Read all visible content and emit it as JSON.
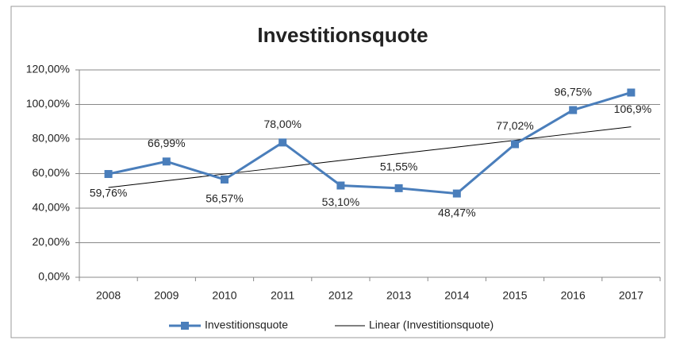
{
  "chart_data": {
    "type": "line",
    "title": "Investitionsquote",
    "categories": [
      "2008",
      "2009",
      "2010",
      "2011",
      "2012",
      "2013",
      "2014",
      "2015",
      "2016",
      "2017"
    ],
    "series": [
      {
        "name": "Investitionsquote",
        "color": "#4a7ebb",
        "marker": "square",
        "values": [
          59.76,
          66.99,
          56.57,
          78.0,
          53.1,
          51.55,
          48.47,
          77.02,
          96.75,
          106.9
        ],
        "value_labels": [
          "59,76%",
          "66,99%",
          "56,57%",
          "78,00%",
          "53,10%",
          "51,55%",
          "48,47%",
          "77,02%",
          "96,75%",
          "106,9%"
        ]
      },
      {
        "name": "Linear (Investitionsquote)",
        "color": "#000000",
        "values": [
          51.93,
          55.84,
          59.74,
          63.65,
          67.56,
          71.47,
          75.37,
          79.28,
          83.19,
          87.09
        ]
      }
    ],
    "ylim": [
      0,
      120
    ],
    "yticks": [
      {
        "value": 0,
        "label": "0,00%"
      },
      {
        "value": 20,
        "label": "20,00%"
      },
      {
        "value": 40,
        "label": "40,00%"
      },
      {
        "value": 60,
        "label": "60,00%"
      },
      {
        "value": 80,
        "label": "80,00%"
      },
      {
        "value": 100,
        "label": "100,00%"
      },
      {
        "value": 120,
        "label": "120,00%"
      }
    ],
    "grid": true,
    "legend": "bottom"
  }
}
